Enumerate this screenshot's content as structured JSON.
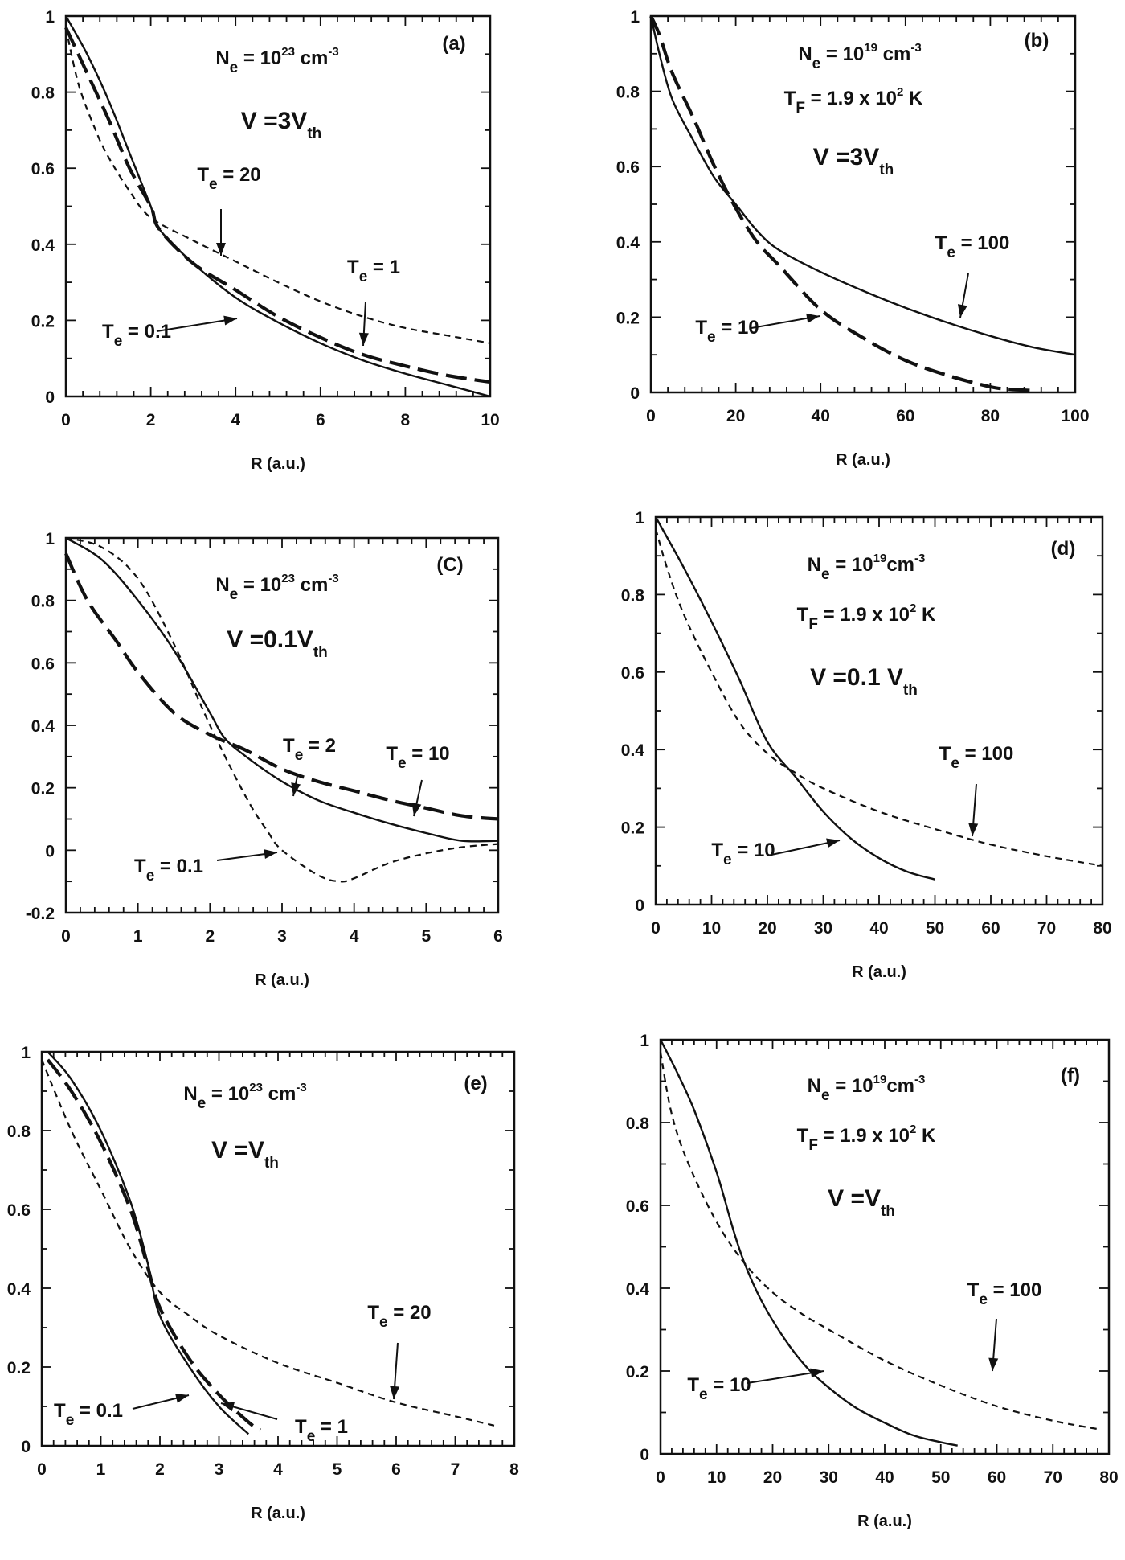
{
  "figure": {
    "panels": [
      {
        "tag": "(a)",
        "xlabel": "R (a.u.)",
        "params": [
          {
            "main": "N",
            "sub": "e",
            "rest": " = 10",
            "sup": "23",
            "tail": " cm",
            "sup2": "-3"
          },
          {
            "main": "V =3V",
            "sub": "th",
            "big": true
          }
        ],
        "curve_labels": [
          {
            "main": "T",
            "sub": "e",
            "rest": " = 20"
          },
          {
            "main": "T",
            "sub": "e",
            "rest": " = 1"
          },
          {
            "main": "T",
            "sub": "e",
            "rest": " = 0.1"
          }
        ]
      },
      {
        "tag": "(b)",
        "xlabel": "R (a.u.)",
        "params": [
          {
            "main": "N",
            "sub": "e",
            "rest": " = 10",
            "sup": "19",
            "tail": " cm",
            "sup2": "-3"
          },
          {
            "main": "T",
            "sub": "F",
            "rest": " = 1.9 x 10",
            "sup": "2",
            "tail": " K"
          },
          {
            "main": "V =3V",
            "sub": "th",
            "big": true
          }
        ],
        "curve_labels": [
          {
            "main": "T",
            "sub": "e",
            "rest": " = 100"
          },
          {
            "main": "T",
            "sub": "e",
            "rest": " = 10"
          }
        ]
      },
      {
        "tag": "(C)",
        "xlabel": "R (a.u.)",
        "params": [
          {
            "main": "N",
            "sub": "e",
            "rest": " = 10",
            "sup": "23",
            "tail": " cm",
            "sup2": "-3"
          },
          {
            "main": "V =0.1V",
            "sub": "th",
            "big": true
          }
        ],
        "curve_labels": [
          {
            "main": "T",
            "sub": "e",
            "rest": " = 2"
          },
          {
            "main": "T",
            "sub": "e",
            "rest": " = 10"
          },
          {
            "main": "T",
            "sub": "e",
            "rest": " = 0.1"
          }
        ]
      },
      {
        "tag": "(d)",
        "xlabel": "R (a.u.)",
        "params": [
          {
            "main": "N",
            "sub": "e",
            "rest": " = 10",
            "sup": "19",
            "tail": "cm",
            "sup2": "-3"
          },
          {
            "main": "T",
            "sub": "F",
            "rest": " = 1.9 x 10",
            "sup": "2",
            "tail": " K"
          },
          {
            "main": "V =0.1 V",
            "sub": "th",
            "big": true
          }
        ],
        "curve_labels": [
          {
            "main": "T",
            "sub": "e",
            "rest": " = 100"
          },
          {
            "main": "T",
            "sub": "e",
            "rest": " = 10"
          }
        ]
      },
      {
        "tag": "(e)",
        "xlabel": "R (a.u.)",
        "params": [
          {
            "main": "N",
            "sub": "e",
            "rest": " = 10",
            "sup": "23",
            "tail": " cm",
            "sup2": "-3"
          },
          {
            "main": "V =V",
            "sub": "th",
            "big": true
          }
        ],
        "curve_labels": [
          {
            "main": "T",
            "sub": "e",
            "rest": " = 20"
          },
          {
            "main": "T",
            "sub": "e",
            "rest": " = 0.1"
          },
          {
            "main": "T",
            "sub": "e",
            "rest": " = 1"
          }
        ]
      },
      {
        "tag": "(f)",
        "xlabel": "R (a.u.)",
        "params": [
          {
            "main": "N",
            "sub": "e",
            "rest": " = 10",
            "sup": "19",
            "tail": "cm",
            "sup2": "-3"
          },
          {
            "main": "T",
            "sub": "F",
            "rest": " = 1.9 x 10",
            "sup": "2",
            "tail": " K"
          },
          {
            "main": "V =V",
            "sub": "th",
            "big": true
          }
        ],
        "curve_labels": [
          {
            "main": "T",
            "sub": "e",
            "rest": " = 100"
          },
          {
            "main": "T",
            "sub": "e",
            "rest": " = 10"
          }
        ]
      }
    ]
  },
  "chart_data": [
    {
      "type": "line",
      "title": "(a)",
      "xlabel": "R (a.u.)",
      "ylabel": "",
      "xlim": [
        0,
        10
      ],
      "ylim": [
        0,
        1
      ],
      "xticks": [
        0,
        2,
        4,
        6,
        8,
        10
      ],
      "yticks": [
        0,
        0.2,
        0.4,
        0.6,
        0.8,
        1
      ],
      "series": [
        {
          "name": "T_e = 0.1",
          "style": "solid",
          "x": [
            0,
            0.5,
            1,
            1.5,
            2,
            2.2,
            3,
            4,
            5,
            6,
            7,
            8,
            9,
            10
          ],
          "y": [
            1,
            0.9,
            0.78,
            0.64,
            0.5,
            0.44,
            0.35,
            0.26,
            0.195,
            0.14,
            0.095,
            0.06,
            0.03,
            0.0
          ]
        },
        {
          "name": "T_e = 1",
          "style": "dash",
          "x": [
            0,
            0.5,
            1,
            1.5,
            2,
            2.2,
            3,
            4,
            5,
            6,
            7,
            8,
            9,
            10
          ],
          "y": [
            0.97,
            0.85,
            0.73,
            0.6,
            0.5,
            0.44,
            0.35,
            0.28,
            0.21,
            0.155,
            0.11,
            0.08,
            0.055,
            0.038
          ]
        },
        {
          "name": "T_e = 20",
          "style": "shortdash",
          "x": [
            0,
            0.3,
            0.7,
            1,
            1.5,
            2,
            3,
            4,
            5,
            6,
            7,
            8,
            9,
            10
          ],
          "y": [
            0.97,
            0.82,
            0.7,
            0.63,
            0.54,
            0.47,
            0.41,
            0.355,
            0.3,
            0.25,
            0.21,
            0.18,
            0.16,
            0.14
          ]
        }
      ]
    },
    {
      "type": "line",
      "title": "(b)",
      "xlabel": "R (a.u.)",
      "ylabel": "",
      "xlim": [
        0,
        100
      ],
      "ylim": [
        0,
        1
      ],
      "xticks": [
        0,
        20,
        40,
        60,
        80,
        100
      ],
      "yticks": [
        0,
        0.2,
        0.4,
        0.6,
        0.8,
        1
      ],
      "series": [
        {
          "name": "T_e = 100",
          "style": "solid",
          "x": [
            0,
            2,
            5,
            10,
            15,
            20,
            25,
            30,
            40,
            50,
            60,
            70,
            80,
            90,
            100
          ],
          "y": [
            1,
            0.9,
            0.78,
            0.67,
            0.57,
            0.5,
            0.43,
            0.38,
            0.32,
            0.27,
            0.225,
            0.185,
            0.15,
            0.12,
            0.1
          ]
        },
        {
          "name": "T_e = 10",
          "style": "dash",
          "x": [
            0,
            2,
            5,
            10,
            15,
            20,
            25,
            30,
            40,
            50,
            60,
            70,
            80,
            85,
            90
          ],
          "y": [
            1,
            0.95,
            0.85,
            0.73,
            0.6,
            0.49,
            0.4,
            0.34,
            0.22,
            0.145,
            0.085,
            0.045,
            0.015,
            0.008,
            0.005
          ]
        }
      ]
    },
    {
      "type": "line",
      "title": "(C)",
      "xlabel": "R (a.u.)",
      "ylabel": "",
      "xlim": [
        0,
        6
      ],
      "ylim": [
        -0.2,
        1
      ],
      "xticks": [
        0,
        1,
        2,
        3,
        4,
        5,
        6
      ],
      "yticks": [
        -0.2,
        0,
        0.2,
        0.4,
        0.6,
        0.8,
        1
      ],
      "series": [
        {
          "name": "T_e = 2",
          "style": "solid",
          "x": [
            0,
            0.5,
            1,
            1.5,
            2,
            2.2,
            2.5,
            3,
            3.5,
            4,
            4.5,
            5,
            5.5,
            6
          ],
          "y": [
            1,
            0.93,
            0.8,
            0.64,
            0.44,
            0.36,
            0.3,
            0.22,
            0.16,
            0.12,
            0.085,
            0.055,
            0.03,
            0.03
          ]
        },
        {
          "name": "T_e = 10",
          "style": "dash",
          "x": [
            0,
            0.3,
            0.7,
            1,
            1.5,
            2,
            2.5,
            3,
            3.5,
            4,
            4.5,
            5,
            5.5,
            6
          ],
          "y": [
            0.95,
            0.8,
            0.67,
            0.57,
            0.44,
            0.37,
            0.32,
            0.26,
            0.22,
            0.19,
            0.16,
            0.135,
            0.11,
            0.1
          ]
        },
        {
          "name": "T_e = 0.1",
          "style": "shortdash",
          "x": [
            0,
            0.5,
            1,
            1.5,
            2,
            2.5,
            2.8,
            3,
            3.5,
            3.8,
            4,
            4.5,
            5,
            5.5,
            6
          ],
          "y": [
            1,
            0.97,
            0.87,
            0.66,
            0.4,
            0.17,
            0.06,
            0.0,
            -0.08,
            -0.1,
            -0.09,
            -0.04,
            -0.01,
            0.01,
            0.02
          ]
        }
      ]
    },
    {
      "type": "line",
      "title": "(d)",
      "xlabel": "R (a.u.)",
      "ylabel": "",
      "xlim": [
        0,
        80
      ],
      "ylim": [
        0,
        1
      ],
      "xticks": [
        0,
        10,
        20,
        30,
        40,
        50,
        60,
        70,
        80
      ],
      "yticks": [
        0,
        0.2,
        0.4,
        0.6,
        0.8,
        1
      ],
      "series": [
        {
          "name": "T_e = 10",
          "style": "solid",
          "x": [
            0,
            5,
            10,
            15,
            20,
            25,
            30,
            35,
            40,
            45,
            50
          ],
          "y": [
            1,
            0.87,
            0.73,
            0.58,
            0.42,
            0.33,
            0.24,
            0.17,
            0.12,
            0.085,
            0.065
          ]
        },
        {
          "name": "T_e = 100",
          "style": "shortdash",
          "x": [
            0,
            2,
            5,
            10,
            15,
            20,
            25,
            30,
            40,
            50,
            60,
            70,
            80
          ],
          "y": [
            0.97,
            0.87,
            0.75,
            0.6,
            0.47,
            0.39,
            0.34,
            0.3,
            0.24,
            0.195,
            0.155,
            0.125,
            0.1
          ]
        }
      ]
    },
    {
      "type": "line",
      "title": "(e)",
      "xlabel": "R (a.u.)",
      "ylabel": "",
      "xlim": [
        0,
        8
      ],
      "ylim": [
        0,
        1
      ],
      "xticks": [
        0,
        1,
        2,
        3,
        4,
        5,
        6,
        7,
        8
      ],
      "yticks": [
        0,
        0.2,
        0.4,
        0.6,
        0.8,
        1
      ],
      "series": [
        {
          "name": "T_e = 0.1",
          "style": "solid",
          "x": [
            0.1,
            0.5,
            1,
            1.5,
            1.8,
            2,
            2.5,
            3,
            3.5
          ],
          "y": [
            1,
            0.93,
            0.8,
            0.62,
            0.46,
            0.33,
            0.2,
            0.1,
            0.03
          ]
        },
        {
          "name": "T_e = 1",
          "style": "dash",
          "x": [
            0.1,
            0.5,
            1,
            1.5,
            1.8,
            2,
            2.5,
            3,
            3.5,
            3.7
          ],
          "y": [
            0.98,
            0.9,
            0.77,
            0.6,
            0.45,
            0.35,
            0.22,
            0.13,
            0.06,
            0.04
          ]
        },
        {
          "name": "T_e = 20",
          "style": "shortdash",
          "x": [
            0,
            0.5,
            1,
            1.5,
            2,
            2.5,
            3,
            4,
            5,
            6,
            7,
            7.7
          ],
          "y": [
            0.98,
            0.8,
            0.65,
            0.5,
            0.39,
            0.33,
            0.28,
            0.21,
            0.16,
            0.11,
            0.075,
            0.05
          ]
        }
      ]
    },
    {
      "type": "line",
      "title": "(f)",
      "xlabel": "R (a.u.)",
      "ylabel": "",
      "xlim": [
        0,
        80
      ],
      "ylim": [
        0,
        1
      ],
      "xticks": [
        0,
        10,
        20,
        30,
        40,
        50,
        60,
        70,
        80
      ],
      "yticks": [
        0,
        0.2,
        0.4,
        0.6,
        0.8,
        1
      ],
      "series": [
        {
          "name": "T_e = 10",
          "style": "solid",
          "x": [
            0,
            3,
            6,
            10,
            13,
            15,
            18,
            22,
            26,
            30,
            35,
            40,
            45,
            50,
            53
          ],
          "y": [
            1,
            0.92,
            0.83,
            0.68,
            0.54,
            0.46,
            0.37,
            0.28,
            0.21,
            0.16,
            0.11,
            0.075,
            0.045,
            0.028,
            0.02
          ]
        },
        {
          "name": "T_e = 100",
          "style": "shortdash",
          "x": [
            0,
            2,
            5,
            10,
            15,
            20,
            25,
            30,
            40,
            50,
            60,
            70,
            78
          ],
          "y": [
            0.97,
            0.82,
            0.7,
            0.56,
            0.46,
            0.39,
            0.34,
            0.3,
            0.225,
            0.165,
            0.115,
            0.08,
            0.06
          ]
        }
      ]
    }
  ]
}
